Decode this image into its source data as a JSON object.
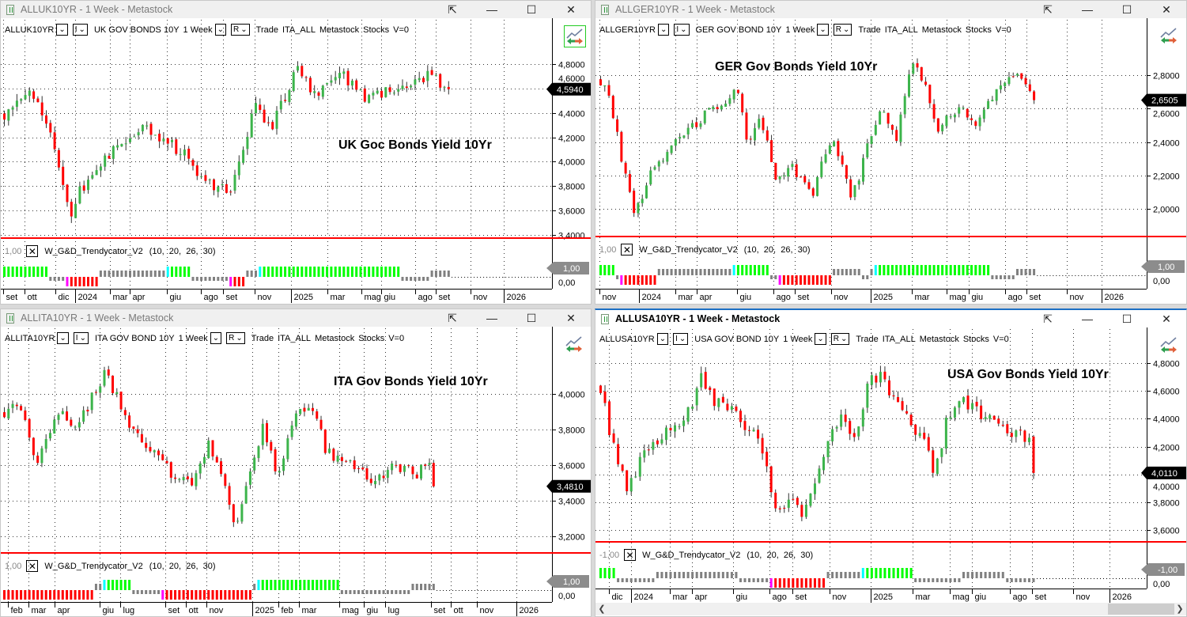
{
  "colors": {
    "candle_up": "#3cb44b",
    "candle_down": "#ff0000",
    "ind_green": "#00ff00",
    "ind_cyan": "#00ffff",
    "ind_grey": "#808080",
    "ind_red": "#ff0000",
    "ind_magenta": "#ff00ff",
    "separator": "#ff0000",
    "active_border": "#1c6fc4"
  },
  "window_buttons": {
    "popout": "⇱",
    "minimize": "—",
    "maximize": "☐",
    "close": "✕"
  },
  "panels": [
    {
      "window_title": "ALLUK10YR - 1 Week - Metastock",
      "active": false,
      "symbol": "ALLUK10YR",
      "dd1": "",
      "dd2": "I",
      "description": "UK GOV BONDS 10Y",
      "period": "1 Week",
      "dd4": "R",
      "tokens": [
        "Trade",
        "ITA_ALL",
        "Metastock",
        "Stocks",
        "V=0"
      ],
      "chart_label": "UK Goc Bonds Yield 10Yr",
      "y_ticks": [
        {
          "label": "4,8000",
          "v": 4.8
        },
        {
          "label": "4,6000",
          "v": 4.6
        },
        {
          "label": "4,4000",
          "v": 4.4
        },
        {
          "label": "4,2000",
          "v": 4.2
        },
        {
          "label": "4,0000",
          "v": 4.0
        },
        {
          "label": "3,8000",
          "v": 3.8
        },
        {
          "label": "3,6000",
          "v": 3.6
        },
        {
          "label": "3,4000",
          "v": 3.4
        }
      ],
      "last_value": "4,5940",
      "last_numeric": 4.594,
      "indicator": {
        "value_label": "1,00",
        "name": "W_G&D_Trendycator_V2",
        "params": "(10,  20,  26,  30)",
        "last_label": "1,00",
        "zero_label": "0,00",
        "segments": [
          [
            "g",
            11
          ],
          [
            "gl",
            4
          ],
          [
            "m",
            1
          ],
          [
            "r",
            7
          ],
          [
            "gh",
            16
          ],
          [
            "c",
            1
          ],
          [
            "g",
            5
          ],
          [
            "gl",
            9
          ],
          [
            "m",
            1
          ],
          [
            "r",
            3
          ],
          [
            "gh",
            3
          ],
          [
            "c",
            1
          ],
          [
            "g",
            33
          ],
          [
            "gl",
            7
          ],
          [
            "gh",
            5
          ]
        ]
      },
      "x_labels": [
        [
          "set",
          0.6
        ],
        [
          "ott",
          5.7
        ],
        [
          "dic",
          13
        ],
        [
          "2024",
          17.7
        ],
        [
          "mar",
          26
        ],
        [
          "apr",
          30.8
        ],
        [
          "giu",
          39.6
        ],
        [
          "ago",
          47.7
        ],
        [
          "set",
          53
        ],
        [
          "nov",
          60.6
        ],
        [
          "2025",
          69.2
        ],
        [
          "mar",
          78
        ],
        [
          "mag",
          86
        ],
        [
          "giu",
          90.8
        ],
        [
          "ago",
          98.9
        ],
        [
          "set",
          103.8
        ],
        [
          "nov",
          112
        ],
        [
          "2026",
          120
        ]
      ],
      "anchors": [
        [
          0,
          4.4
        ],
        [
          6,
          4.62
        ],
        [
          12,
          4.1
        ],
        [
          16,
          3.55
        ],
        [
          18,
          3.75
        ],
        [
          24,
          4.05
        ],
        [
          33,
          4.3
        ],
        [
          44,
          4.05
        ],
        [
          48,
          3.8
        ],
        [
          54,
          3.8
        ],
        [
          60,
          4.45
        ],
        [
          64,
          4.3
        ],
        [
          70,
          4.8
        ],
        [
          74,
          4.55
        ],
        [
          80,
          4.72
        ],
        [
          86,
          4.5
        ],
        [
          94,
          4.6
        ],
        [
          101,
          4.72
        ],
        [
          106,
          4.594
        ]
      ]
    },
    {
      "window_title": "ALLGER10YR - 1 Week - Metastock",
      "active": false,
      "symbol": "ALLGER10YR",
      "dd1": "",
      "dd2": "I",
      "description": "GER GOV BOND 10Y",
      "period": "1 Week",
      "dd4": "R",
      "tokens": [
        "Trade",
        "ITA_ALL",
        "Metastock",
        "Stocks",
        "V=0"
      ],
      "chart_label": "GER Gov Bonds Yield 10Yr",
      "y_ticks": [
        {
          "label": "2,8000",
          "v": 2.8
        },
        {
          "label": "2,6000",
          "v": 2.6
        },
        {
          "label": "2,4000",
          "v": 2.4
        },
        {
          "label": "2,2000",
          "v": 2.2
        },
        {
          "label": "2,0000",
          "v": 2.0
        }
      ],
      "last_value": "2,6505",
      "last_numeric": 2.6505,
      "indicator": {
        "value_label": "1,00",
        "name": "W_G&D_Trendycator_V2",
        "params": "(10,  20,  26,  30)",
        "last_label": "1,00",
        "zero_label": "0,00",
        "segments": [
          [
            "g",
            4
          ],
          [
            "gl",
            1
          ],
          [
            "m",
            1
          ],
          [
            "r",
            8
          ],
          [
            "gh",
            18
          ],
          [
            "c",
            1
          ],
          [
            "g",
            8
          ],
          [
            "gl",
            2
          ],
          [
            "m",
            1
          ],
          [
            "r",
            12
          ],
          [
            "gh",
            7
          ],
          [
            "gl",
            2
          ],
          [
            "gh",
            1
          ],
          [
            "c",
            1
          ],
          [
            "g",
            27
          ],
          [
            "gl",
            6
          ],
          [
            "gh",
            5
          ]
        ]
      },
      "x_labels": [
        [
          "nov",
          0.6
        ],
        [
          "2024",
          10
        ],
        [
          "mar",
          18.8
        ],
        [
          "apr",
          24
        ],
        [
          "giu",
          33.6
        ],
        [
          "ago",
          42.3
        ],
        [
          "set",
          47.4
        ],
        [
          "nov",
          56.2
        ],
        [
          "2025",
          65.7
        ],
        [
          "mar",
          75.5
        ],
        [
          "mag",
          83.9
        ],
        [
          "giu",
          89.2
        ],
        [
          "ago",
          97.9
        ],
        [
          "set",
          103
        ],
        [
          "nov",
          112.8
        ],
        [
          "2026",
          121
        ]
      ],
      "anchors": [
        [
          0,
          2.77
        ],
        [
          2.5,
          2.62
        ],
        [
          6.3,
          2.15
        ],
        [
          8.2,
          1.97
        ],
        [
          12,
          2.2
        ],
        [
          17.6,
          2.4
        ],
        [
          27,
          2.6
        ],
        [
          33,
          2.7
        ],
        [
          35,
          2.4
        ],
        [
          38.5,
          2.55
        ],
        [
          42,
          2.15
        ],
        [
          46,
          2.25
        ],
        [
          51,
          2.1
        ],
        [
          55.5,
          2.45
        ],
        [
          60,
          2.1
        ],
        [
          62,
          2.2
        ],
        [
          67,
          2.6
        ],
        [
          71,
          2.4
        ],
        [
          74.5,
          2.9
        ],
        [
          78,
          2.73
        ],
        [
          81,
          2.48
        ],
        [
          86,
          2.6
        ],
        [
          90,
          2.5
        ],
        [
          95,
          2.73
        ],
        [
          100,
          2.78
        ],
        [
          104,
          2.6505
        ]
      ]
    },
    {
      "window_title": "ALLITA10YR - 1 Week - Metastock",
      "active": false,
      "symbol": "ALLITA10YR",
      "dd1": "",
      "dd2": "I",
      "description": "ITA GOV BOND 10Y",
      "period": "1 Week",
      "dd4": "R",
      "tokens": [
        "Trade",
        "ITA_ALL",
        "Metastock",
        "Stocks",
        "V=0"
      ],
      "chart_label": "ITA Gov Bonds Yield 10Yr",
      "y_ticks": [
        {
          "label": "4,0000",
          "v": 4.0
        },
        {
          "label": "3,8000",
          "v": 3.8
        },
        {
          "label": "3,6000",
          "v": 3.6
        },
        {
          "label": "3,4000",
          "v": 3.4
        },
        {
          "label": "3,2000",
          "v": 3.2
        }
      ],
      "last_value": "3,4810",
      "last_numeric": 3.481,
      "indicator": {
        "value_label": "1,00",
        "name": "W_G&D_Trendycator_V2",
        "params": "(10,  20,  26,  30)",
        "last_label": "1,00",
        "zero_label": "0,00",
        "segments": [
          [
            "r",
            22
          ],
          [
            "gh",
            2
          ],
          [
            "c",
            1
          ],
          [
            "g",
            6
          ],
          [
            "gl",
            7
          ],
          [
            "m",
            1
          ],
          [
            "r",
            21
          ],
          [
            "gh",
            1
          ],
          [
            "c",
            1
          ],
          [
            "g",
            19
          ],
          [
            "gl",
            17
          ],
          [
            "gh",
            6
          ]
        ]
      },
      "x_labels": [
        [
          "feb",
          1.7
        ],
        [
          "mar",
          6.6
        ],
        [
          "apr",
          12.9
        ],
        [
          "giu",
          23.7
        ],
        [
          "lug",
          28.7
        ],
        [
          "set",
          39.5
        ],
        [
          "ott",
          44.4
        ],
        [
          "nov",
          49.3
        ],
        [
          "2025",
          60.3
        ],
        [
          "feb",
          66.6
        ],
        [
          "mar",
          71.5
        ],
        [
          "mag",
          81.2
        ],
        [
          "giu",
          87.1
        ],
        [
          "lug",
          92.2
        ],
        [
          "set",
          103.2
        ],
        [
          "ott",
          107.9
        ],
        [
          "nov",
          114.2
        ],
        [
          "2026",
          123.7
        ]
      ],
      "anchors": [
        [
          0,
          3.9
        ],
        [
          3.2,
          3.96
        ],
        [
          8,
          3.6
        ],
        [
          10.8,
          3.8
        ],
        [
          13.7,
          3.95
        ],
        [
          16.5,
          3.8
        ],
        [
          19.4,
          3.9
        ],
        [
          24,
          4.12
        ],
        [
          27.9,
          3.95
        ],
        [
          30.7,
          3.8
        ],
        [
          35.5,
          3.68
        ],
        [
          41.2,
          3.52
        ],
        [
          45,
          3.5
        ],
        [
          48.8,
          3.72
        ],
        [
          52.6,
          3.5
        ],
        [
          55.4,
          3.23
        ],
        [
          58.3,
          3.54
        ],
        [
          62,
          3.8
        ],
        [
          65.8,
          3.54
        ],
        [
          70.6,
          3.95
        ],
        [
          74.4,
          3.9
        ],
        [
          77.2,
          3.68
        ],
        [
          82.9,
          3.6
        ],
        [
          88.6,
          3.52
        ],
        [
          94.3,
          3.6
        ],
        [
          99,
          3.55
        ],
        [
          101.9,
          3.64
        ],
        [
          103,
          3.481
        ]
      ]
    },
    {
      "window_title": "ALLUSA10YR - 1 Week - Metastock",
      "active": true,
      "symbol": "ALLUSA10YR",
      "dd1": "",
      "dd2": "I",
      "description": "USA GOV BOND 10Y",
      "period": "1 Week",
      "dd4": "R",
      "tokens": [
        "Trade",
        "ITA_ALL",
        "Metastock",
        "Stocks",
        "V=0"
      ],
      "chart_label": "USA Gov Bonds Yield 10Yr",
      "y_ticks": [
        {
          "label": "4,8000",
          "v": 4.8
        },
        {
          "label": "4,6000",
          "v": 4.6
        },
        {
          "label": "4,4000",
          "v": 4.4
        },
        {
          "label": "4,2000",
          "v": 4.2
        },
        {
          "label": "4,0000",
          "v": 4.0
        },
        {
          "label": "3,8000",
          "v": 3.8
        },
        {
          "label": "3,6000",
          "v": 3.6
        }
      ],
      "last_value": "4,0110",
      "last_numeric": 4.011,
      "indicator": {
        "value_label": "-1,00",
        "name": "W_G&D_Trendycator_V2",
        "params": "(10,  20,  26,  30)",
        "last_label": "-1,00",
        "zero_label": "0,00",
        "segments": [
          [
            "g",
            4
          ],
          [
            "gl",
            9
          ],
          [
            "gh",
            19
          ],
          [
            "gl",
            7
          ],
          [
            "m",
            1
          ],
          [
            "r",
            12
          ],
          [
            "gh",
            8
          ],
          [
            "c",
            1
          ],
          [
            "g",
            11
          ],
          [
            "gl",
            11
          ],
          [
            "gh",
            10
          ],
          [
            "gl",
            7
          ]
        ]
      },
      "x_labels": [
        [
          "dic",
          2.7
        ],
        [
          "2024",
          7.8
        ],
        [
          "mar",
          16.6
        ],
        [
          "apr",
          21.7
        ],
        [
          "giu",
          31.1
        ],
        [
          "ago",
          39.4
        ],
        [
          "set",
          44.6
        ],
        [
          "nov",
          53.1
        ],
        [
          "2025",
          62.6
        ],
        [
          "mar",
          72.1
        ],
        [
          "mag",
          80.6
        ],
        [
          "giu",
          85.7
        ],
        [
          "ago",
          94.4
        ],
        [
          "set",
          99.5
        ],
        [
          "nov",
          108.9
        ],
        [
          "2026",
          117.2
        ]
      ],
      "anchors": [
        [
          0,
          4.63
        ],
        [
          2.4,
          4.24
        ],
        [
          6,
          3.9
        ],
        [
          9.6,
          4.12
        ],
        [
          15,
          4.3
        ],
        [
          20.4,
          4.46
        ],
        [
          23.1,
          4.69
        ],
        [
          25.8,
          4.52
        ],
        [
          29.5,
          4.46
        ],
        [
          33.1,
          4.35
        ],
        [
          36.7,
          4.24
        ],
        [
          39.4,
          3.78
        ],
        [
          43.9,
          3.78
        ],
        [
          46.6,
          3.72
        ],
        [
          50.3,
          4.06
        ],
        [
          54.8,
          4.46
        ],
        [
          58.4,
          4.24
        ],
        [
          61.1,
          4.63
        ],
        [
          63.8,
          4.74
        ],
        [
          67.5,
          4.52
        ],
        [
          71.1,
          4.35
        ],
        [
          73.8,
          4.24
        ],
        [
          76.5,
          4.01
        ],
        [
          79.2,
          4.41
        ],
        [
          82.8,
          4.52
        ],
        [
          87.3,
          4.41
        ],
        [
          91,
          4.35
        ],
        [
          94.6,
          4.3
        ],
        [
          98.2,
          4.24
        ],
        [
          99.5,
          4.011
        ]
      ]
    }
  ]
}
